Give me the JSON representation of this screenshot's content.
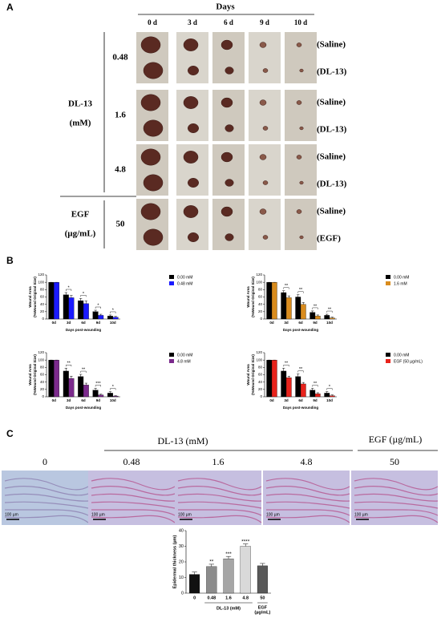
{
  "panel_labels": [
    "A",
    "B",
    "C"
  ],
  "panel_a": {
    "header": "Days",
    "columns": [
      "0 d",
      "3 d",
      "6 d",
      "9 d",
      "10 d"
    ],
    "groups": [
      {
        "label": "DL-13",
        "unit": "(mM)",
        "rows": [
          {
            "dose": "0.48",
            "conditions": [
              "(Saline)",
              "(DL-13)"
            ]
          },
          {
            "dose": "1.6",
            "conditions": [
              "(Saline)",
              "(DL-13)"
            ]
          },
          {
            "dose": "4.8",
            "conditions": [
              "(Saline)",
              "(DL-13)"
            ]
          }
        ]
      },
      {
        "label": "EGF",
        "unit": "(µg/mL)",
        "rows": [
          {
            "dose": "50",
            "conditions": [
              "(Saline)",
              "(EGF)"
            ]
          }
        ]
      }
    ]
  },
  "panel_c": {
    "group_headers": [
      "DL-13 (mM)",
      "EGF (µg/mL)"
    ],
    "columns": [
      "0",
      "0.48",
      "1.6",
      "4.8",
      "50"
    ],
    "scale_bar": "100 µm"
  },
  "chart_data": [
    {
      "type": "bar",
      "y_label": [
        "Wound Area",
        "(%Wound Original Size)"
      ],
      "x_label": "Days post-wounding",
      "categories": [
        "0d",
        "3d",
        "6d",
        "9d",
        "10d"
      ],
      "ylim": [
        0,
        120
      ],
      "yticks": [
        0,
        20,
        40,
        60,
        80,
        100,
        120
      ],
      "legend": "right",
      "series": [
        {
          "name": "0.00 mM",
          "color": "#000000",
          "values": [
            100,
            66,
            50,
            20,
            8
          ],
          "errors": [
            0,
            6,
            6,
            4,
            3
          ]
        },
        {
          "name": "0.48 mM",
          "color": "#1a1aff",
          "values": [
            100,
            58,
            42,
            10,
            5
          ],
          "errors": [
            0,
            6,
            7,
            3,
            2
          ]
        }
      ],
      "significance": [
        null,
        "*",
        "*",
        "*",
        "*"
      ]
    },
    {
      "type": "bar",
      "y_label": [
        "Wound Area",
        "(%Wound Original Size)"
      ],
      "x_label": "Days post-wounding",
      "categories": [
        "0d",
        "3d",
        "6d",
        "9d",
        "10d"
      ],
      "ylim": [
        0,
        120
      ],
      "yticks": [
        0,
        20,
        40,
        60,
        80,
        100,
        120
      ],
      "legend": "right",
      "series": [
        {
          "name": "0.00 mM",
          "color": "#000000",
          "values": [
            100,
            72,
            60,
            18,
            10
          ],
          "errors": [
            0,
            5,
            6,
            4,
            3
          ]
        },
        {
          "name": "1.6 mM",
          "color": "#d98c1e",
          "values": [
            100,
            58,
            40,
            8,
            3
          ],
          "errors": [
            0,
            5,
            5,
            3,
            2
          ]
        }
      ],
      "significance": [
        null,
        "**",
        "**",
        "**",
        "**"
      ]
    },
    {
      "type": "bar",
      "y_label": [
        "Wound Area",
        "(%Wound Original Size)"
      ],
      "x_label": "Days post-wounding",
      "categories": [
        "0d",
        "3d",
        "6d",
        "9d",
        "10d"
      ],
      "ylim": [
        0,
        120
      ],
      "yticks": [
        0,
        20,
        40,
        60,
        80,
        100,
        120
      ],
      "legend": "right",
      "series": [
        {
          "name": "0.00 mM",
          "color": "#000000",
          "values": [
            100,
            70,
            55,
            18,
            10
          ],
          "errors": [
            0,
            8,
            6,
            5,
            4
          ]
        },
        {
          "name": "4.8 mM",
          "color": "#7b2a8c",
          "values": [
            100,
            50,
            32,
            5,
            2
          ],
          "errors": [
            0,
            6,
            5,
            2,
            1
          ]
        }
      ],
      "significance": [
        null,
        "**",
        "**",
        "***",
        "*"
      ]
    },
    {
      "type": "bar",
      "y_label": [
        "Wound Area",
        "(%Wound Original Size)"
      ],
      "x_label": "Days post-wounding",
      "categories": [
        "0d",
        "3d",
        "6d",
        "9d",
        "10d"
      ],
      "ylim": [
        0,
        120
      ],
      "yticks": [
        0,
        20,
        40,
        60,
        80,
        100,
        120
      ],
      "legend": "right",
      "series": [
        {
          "name": "0.00 mM",
          "color": "#000000",
          "values": [
            100,
            70,
            55,
            18,
            10
          ],
          "errors": [
            0,
            8,
            7,
            5,
            4
          ]
        },
        {
          "name": "EGF (50 µg/mL)",
          "color": "#e8231c",
          "values": [
            100,
            52,
            35,
            8,
            3
          ],
          "errors": [
            0,
            4,
            4,
            3,
            2
          ]
        }
      ],
      "significance": [
        null,
        "**",
        "**",
        "**",
        "*"
      ]
    },
    {
      "type": "bar",
      "y_label": [
        "Epidermal thickness (µm)"
      ],
      "categories": [
        "0",
        "0.48",
        "1.6",
        "4.8",
        "50"
      ],
      "ylim": [
        0,
        40
      ],
      "yticks": [
        0,
        10,
        20,
        30,
        40
      ],
      "values": [
        12,
        17,
        22,
        30,
        17.5
      ],
      "errors": [
        1.5,
        1.5,
        1.5,
        1.5,
        1.5
      ],
      "colors": [
        "#111111",
        "#8c8c8c",
        "#a6a6a6",
        "#d9d9d9",
        "#595959"
      ],
      "significance": [
        null,
        "**",
        "***",
        "****",
        null
      ],
      "group_labels": [
        [
          "DL-13 (mM)"
        ],
        [
          "EGF",
          "(µg/mL)"
        ]
      ]
    }
  ]
}
